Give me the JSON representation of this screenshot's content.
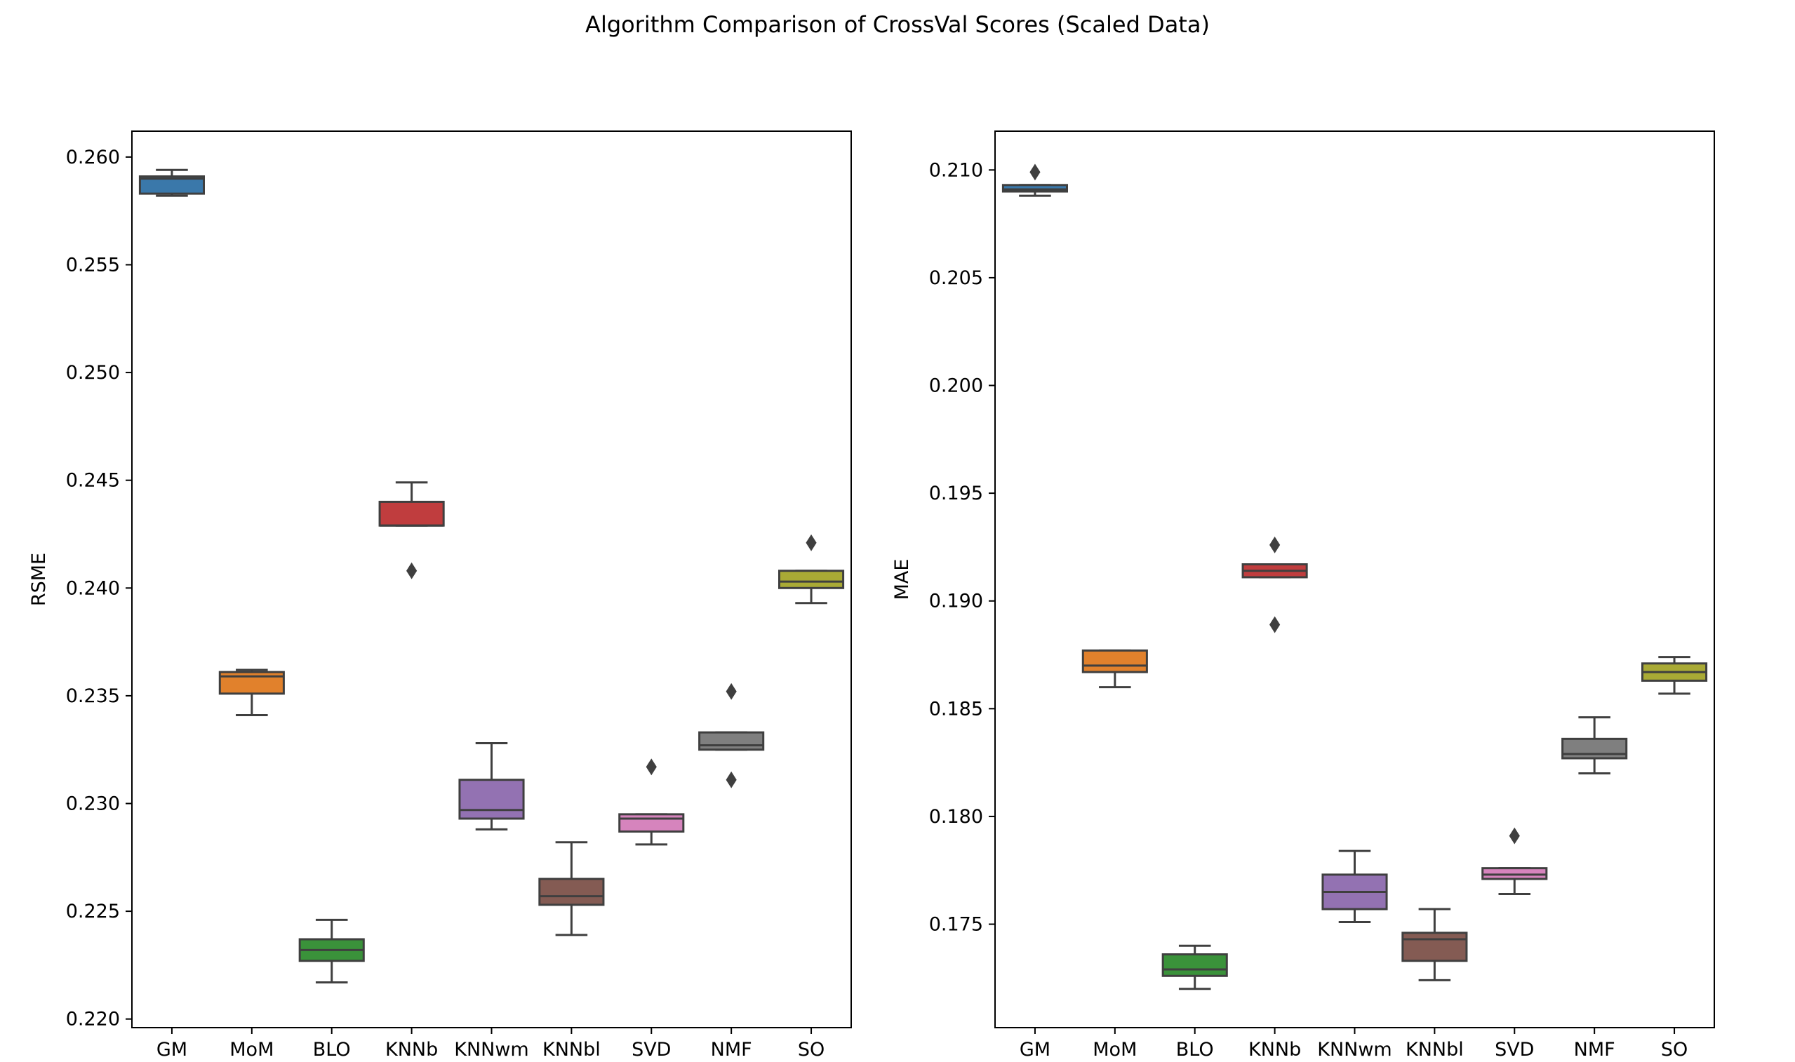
{
  "suptitle": "Algorithm Comparison of CrossVal Scores (Scaled Data)",
  "colors": {
    "GM": "#3a78aa",
    "MoM": "#e1812c",
    "BLO": "#3a923a",
    "KNNb": "#c03d3e",
    "KNNwm": "#9372b2",
    "KNNbl": "#845b53",
    "SVD": "#d684bd",
    "NMF": "#7f7f7f",
    "SO": "#a9aa35",
    "line": "#3f3f3f"
  },
  "chart_data": [
    {
      "type": "box",
      "ylabel": "RSME",
      "xlabel": "",
      "ylim": [
        0.2196,
        0.2612
      ],
      "yticks": [
        {
          "value": 0.22,
          "label": "0.220"
        },
        {
          "value": 0.225,
          "label": "0.225"
        },
        {
          "value": 0.23,
          "label": "0.230"
        },
        {
          "value": 0.235,
          "label": "0.235"
        },
        {
          "value": 0.24,
          "label": "0.240"
        },
        {
          "value": 0.245,
          "label": "0.245"
        },
        {
          "value": 0.25,
          "label": "0.250"
        },
        {
          "value": 0.255,
          "label": "0.255"
        },
        {
          "value": 0.26,
          "label": "0.260"
        }
      ],
      "categories": [
        "GM",
        "MoM",
        "BLO",
        "KNNb",
        "KNNwm",
        "KNNbl",
        "SVD",
        "NMF",
        "SO"
      ],
      "boxes": [
        {
          "name": "GM",
          "whislo": 0.2582,
          "q1": 0.2583,
          "med": 0.259,
          "q3": 0.2591,
          "whishi": 0.2594,
          "fliers": []
        },
        {
          "name": "MoM",
          "whislo": 0.2341,
          "q1": 0.2351,
          "med": 0.2359,
          "q3": 0.2361,
          "whishi": 0.2362,
          "fliers": []
        },
        {
          "name": "BLO",
          "whislo": 0.2217,
          "q1": 0.2227,
          "med": 0.2232,
          "q3": 0.2237,
          "whishi": 0.2246,
          "fliers": []
        },
        {
          "name": "KNNb",
          "whislo": 0.2429,
          "q1": 0.2429,
          "med": 0.2429,
          "q3": 0.244,
          "whishi": 0.2449,
          "fliers": [
            0.2408
          ]
        },
        {
          "name": "KNNwm",
          "whislo": 0.2288,
          "q1": 0.2293,
          "med": 0.2297,
          "q3": 0.2311,
          "whishi": 0.2328,
          "fliers": []
        },
        {
          "name": "KNNbl",
          "whislo": 0.2239,
          "q1": 0.2253,
          "med": 0.2257,
          "q3": 0.2265,
          "whishi": 0.2282,
          "fliers": []
        },
        {
          "name": "SVD",
          "whislo": 0.2281,
          "q1": 0.2287,
          "med": 0.2293,
          "q3": 0.2295,
          "whishi": 0.2295,
          "fliers": [
            0.2317
          ]
        },
        {
          "name": "NMF",
          "whislo": 0.2325,
          "q1": 0.2325,
          "med": 0.2327,
          "q3": 0.2333,
          "whishi": 0.2333,
          "fliers": [
            0.2352,
            0.2311
          ]
        },
        {
          "name": "SO",
          "whislo": 0.2393,
          "q1": 0.24,
          "med": 0.2403,
          "q3": 0.2408,
          "whishi": 0.2408,
          "fliers": [
            0.2421
          ]
        }
      ]
    },
    {
      "type": "box",
      "ylabel": "MAE",
      "xlabel": "",
      "ylim": [
        0.1702,
        0.2118
      ],
      "yticks": [
        {
          "value": 0.175,
          "label": "0.175"
        },
        {
          "value": 0.18,
          "label": "0.180"
        },
        {
          "value": 0.185,
          "label": "0.185"
        },
        {
          "value": 0.19,
          "label": "0.190"
        },
        {
          "value": 0.195,
          "label": "0.195"
        },
        {
          "value": 0.2,
          "label": "0.200"
        },
        {
          "value": 0.205,
          "label": "0.205"
        },
        {
          "value": 0.21,
          "label": "0.210"
        }
      ],
      "categories": [
        "GM",
        "MoM",
        "BLO",
        "KNNb",
        "KNNwm",
        "KNNbl",
        "SVD",
        "NMF",
        "SO"
      ],
      "boxes": [
        {
          "name": "GM",
          "whislo": 0.2088,
          "q1": 0.209,
          "med": 0.2091,
          "q3": 0.2093,
          "whishi": 0.2093,
          "fliers": [
            0.2099
          ]
        },
        {
          "name": "MoM",
          "whislo": 0.186,
          "q1": 0.1867,
          "med": 0.187,
          "q3": 0.1877,
          "whishi": 0.1877,
          "fliers": []
        },
        {
          "name": "BLO",
          "whislo": 0.172,
          "q1": 0.1726,
          "med": 0.1729,
          "q3": 0.1736,
          "whishi": 0.174,
          "fliers": []
        },
        {
          "name": "KNNb",
          "whislo": 0.1911,
          "q1": 0.1911,
          "med": 0.1914,
          "q3": 0.1917,
          "whishi": 0.1917,
          "fliers": [
            0.1926,
            0.1889
          ]
        },
        {
          "name": "KNNwm",
          "whislo": 0.1751,
          "q1": 0.1757,
          "med": 0.1765,
          "q3": 0.1773,
          "whishi": 0.1784,
          "fliers": []
        },
        {
          "name": "KNNbl",
          "whislo": 0.1724,
          "q1": 0.1733,
          "med": 0.1743,
          "q3": 0.1746,
          "whishi": 0.1757,
          "fliers": []
        },
        {
          "name": "SVD",
          "whislo": 0.1764,
          "q1": 0.1771,
          "med": 0.1773,
          "q3": 0.1776,
          "whishi": 0.1776,
          "fliers": [
            0.1791
          ]
        },
        {
          "name": "NMF",
          "whislo": 0.182,
          "q1": 0.1827,
          "med": 0.1829,
          "q3": 0.1836,
          "whishi": 0.1846,
          "fliers": []
        },
        {
          "name": "SO",
          "whislo": 0.1857,
          "q1": 0.1863,
          "med": 0.1867,
          "q3": 0.1871,
          "whishi": 0.1874,
          "fliers": []
        }
      ]
    }
  ]
}
